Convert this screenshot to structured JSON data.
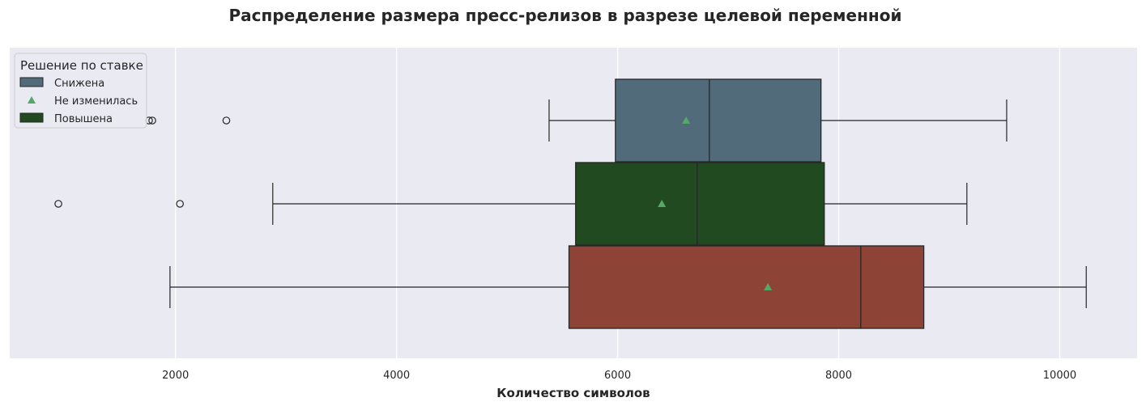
{
  "chart_data": {
    "type": "boxplot",
    "orientation": "horizontal",
    "title": "Распределение размера пресс-релизов в разрезе целевой переменной",
    "xlabel": "Количество символов",
    "ylabel": "",
    "xlim": [
      500,
      10700
    ],
    "xticks": [
      2000,
      4000,
      6000,
      8000,
      10000
    ],
    "grid": true,
    "background": "#EAEAF2",
    "grid_color": "#FFFFFF",
    "legend": {
      "title": "Решение по ставке",
      "placement": "top-left",
      "entries": [
        {
          "label": "Снижена",
          "marker": "patch",
          "color": "#516B7B"
        },
        {
          "label": "Не изменилась",
          "marker": "triangle",
          "color": "#55A868"
        },
        {
          "label": "Повышена",
          "marker": "patch",
          "color": "#214A21"
        }
      ]
    },
    "boxes": [
      {
        "color": "#516B7B",
        "whisker_low": 5380,
        "q1": 5980,
        "median": 6830,
        "q3": 7840,
        "whisker_high": 9520,
        "mean": 6620,
        "outliers": [
          1760,
          1790,
          2460
        ]
      },
      {
        "color": "#214A21",
        "whisker_low": 2880,
        "q1": 5620,
        "median": 6720,
        "q3": 7870,
        "whisker_high": 9160,
        "mean": 6400,
        "outliers": [
          940,
          2040
        ]
      },
      {
        "color": "#8E4337",
        "whisker_low": 1950,
        "q1": 5560,
        "median": 8200,
        "q3": 8770,
        "whisker_high": 10240,
        "mean": 7360,
        "outliers": []
      }
    ],
    "mean_marker_color": "#55A868"
  }
}
